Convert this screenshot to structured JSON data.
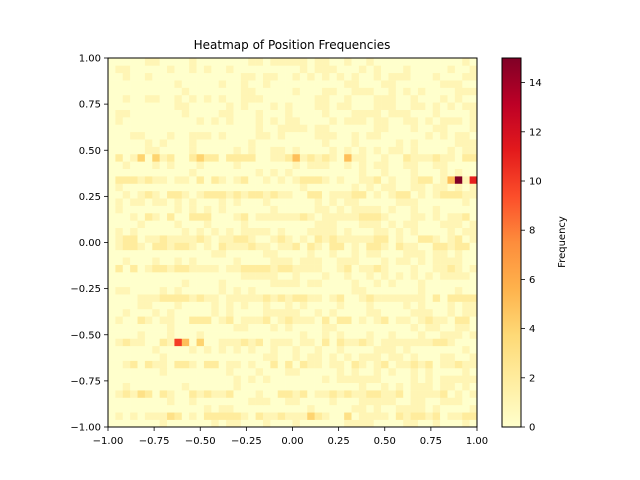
{
  "chart_data": {
    "type": "heatmap",
    "title": "Heatmap of Position Frequencies",
    "xlabel": "",
    "ylabel": "",
    "xlim": [
      -1.0,
      1.0
    ],
    "ylim": [
      -1.0,
      1.0
    ],
    "grid": false,
    "bins": [
      50,
      50
    ],
    "colormap": "YlOrRd",
    "x_ticks": [
      -1.0,
      -0.75,
      -0.5,
      -0.25,
      0.0,
      0.25,
      0.5,
      0.75,
      1.0
    ],
    "x_tick_labels": [
      "−1.00",
      "−0.75",
      "−0.50",
      "−0.25",
      "0.00",
      "0.25",
      "0.50",
      "0.75",
      "1.00"
    ],
    "y_ticks": [
      -1.0,
      -0.75,
      -0.5,
      -0.25,
      0.0,
      0.25,
      0.5,
      0.75,
      1.0
    ],
    "y_tick_labels": [
      "−1.00",
      "−0.75",
      "−0.50",
      "−0.25",
      "0.00",
      "0.25",
      "0.50",
      "0.75",
      "1.00"
    ],
    "colorbar": {
      "label": "Frequency",
      "range": [
        0,
        15
      ],
      "ticks": [
        0,
        2,
        4,
        6,
        8,
        10,
        12,
        14
      ],
      "tick_labels": [
        "0",
        "2",
        "4",
        "6",
        "8",
        "10",
        "12",
        "14"
      ]
    },
    "colormap_stops": [
      "#ffffcc",
      "#ffeda0",
      "#fed976",
      "#feb24c",
      "#fd8d3c",
      "#fc4e2a",
      "#e31a1c",
      "#bd0026",
      "#800026"
    ],
    "hot_cells": [
      {
        "x": 0.9,
        "y": 0.33,
        "value": 15
      },
      {
        "x": 0.98,
        "y": 0.33,
        "value": 11
      },
      {
        "x": 0.86,
        "y": 0.33,
        "value": 5
      },
      {
        "x": -0.62,
        "y": -0.53,
        "value": 10
      },
      {
        "x": -0.58,
        "y": -0.53,
        "value": 5
      },
      {
        "x": -0.5,
        "y": -0.53,
        "value": 4
      },
      {
        "x": 0.02,
        "y": 0.45,
        "value": 5
      },
      {
        "x": 0.3,
        "y": 0.45,
        "value": 5
      },
      {
        "x": -0.82,
        "y": 0.45,
        "value": 4
      },
      {
        "x": -0.74,
        "y": 0.45,
        "value": 4
      },
      {
        "x": -0.5,
        "y": 0.45,
        "value": 4
      },
      {
        "x": 0.1,
        "y": -0.93,
        "value": 4
      },
      {
        "x": -0.82,
        "y": -0.81,
        "value": 3
      },
      {
        "x": -0.66,
        "y": -0.93,
        "value": 3
      },
      {
        "x": 0.3,
        "y": -0.93,
        "value": 3
      }
    ],
    "dense_rows_y": [
      0.45,
      0.33,
      0.25,
      0.13,
      0.01,
      -0.03,
      -0.15,
      -0.29,
      -0.41,
      -0.53,
      -0.65,
      -0.81,
      -0.93
    ]
  }
}
